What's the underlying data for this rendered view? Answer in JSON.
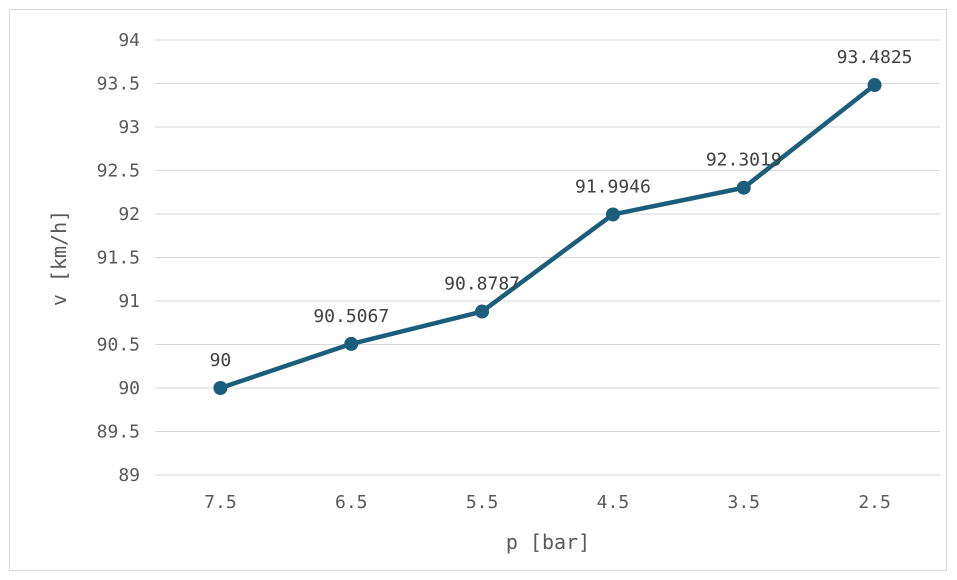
{
  "chart_data": {
    "type": "line",
    "categories": [
      "7.5",
      "6.5",
      "5.5",
      "4.5",
      "3.5",
      "2.5"
    ],
    "values": [
      90,
      90.5067,
      90.8787,
      91.9946,
      92.3019,
      93.4825
    ],
    "data_labels": [
      "90",
      "90.5067",
      "90.8787",
      "91.9946",
      "92.3019",
      "93.4825"
    ],
    "xlabel": "p [bar]",
    "ylabel": "v [km/h]",
    "ylim": [
      89,
      94
    ],
    "yticks": [
      "89",
      "89.5",
      "90",
      "90.5",
      "91",
      "91.5",
      "92",
      "92.5",
      "93",
      "93.5",
      "94"
    ],
    "grid": true,
    "legend": "none",
    "line_color": "#1b5e7c"
  }
}
